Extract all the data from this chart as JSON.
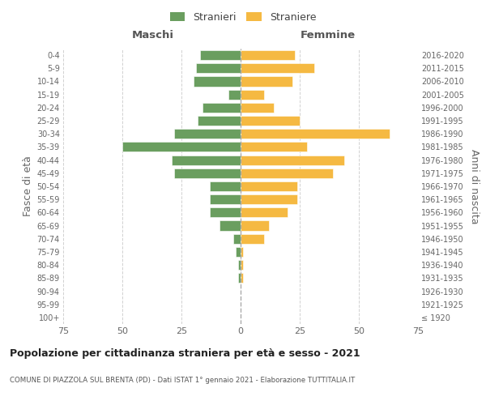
{
  "age_groups": [
    "100+",
    "95-99",
    "90-94",
    "85-89",
    "80-84",
    "75-79",
    "70-74",
    "65-69",
    "60-64",
    "55-59",
    "50-54",
    "45-49",
    "40-44",
    "35-39",
    "30-34",
    "25-29",
    "20-24",
    "15-19",
    "10-14",
    "5-9",
    "0-4"
  ],
  "birth_years": [
    "≤ 1920",
    "1921-1925",
    "1926-1930",
    "1931-1935",
    "1936-1940",
    "1941-1945",
    "1946-1950",
    "1951-1955",
    "1956-1960",
    "1961-1965",
    "1966-1970",
    "1971-1975",
    "1976-1980",
    "1981-1985",
    "1986-1990",
    "1991-1995",
    "1996-2000",
    "2001-2005",
    "2006-2010",
    "2011-2015",
    "2016-2020"
  ],
  "maschi": [
    0,
    0,
    0,
    1,
    1,
    2,
    3,
    9,
    13,
    13,
    13,
    28,
    29,
    50,
    28,
    18,
    16,
    5,
    20,
    19,
    17
  ],
  "femmine": [
    0,
    0,
    0,
    1,
    1,
    1,
    10,
    12,
    20,
    24,
    24,
    39,
    44,
    28,
    63,
    25,
    14,
    10,
    22,
    31,
    23
  ],
  "color_maschi": "#6a9e5f",
  "color_femmine": "#f5b942",
  "title_main": "Popolazione per cittadinanza straniera per età e sesso - 2021",
  "title_sub": "COMUNE DI PIAZZOLA SUL BRENTA (PD) - Dati ISTAT 1° gennaio 2021 - Elaborazione TUTTITALIA.IT",
  "label_maschi_header": "Maschi",
  "label_femmine_header": "Femmine",
  "legend_stranieri": "Stranieri",
  "legend_straniere": "Straniere",
  "ylabel_left": "Fasce di età",
  "ylabel_right": "Anni di nascita",
  "xlim": 75,
  "background_color": "#ffffff",
  "grid_color": "#cccccc"
}
